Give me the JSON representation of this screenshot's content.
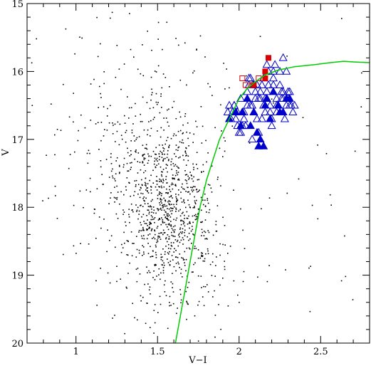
{
  "chart_data": {
    "type": "scatter",
    "title": "",
    "xlabel": "V−I",
    "ylabel": "V",
    "xlim": [
      0.7,
      2.8
    ],
    "ylim": [
      20,
      15
    ],
    "y_inverted": true,
    "x_ticks": [
      1,
      1.5,
      2,
      2.5
    ],
    "x_tick_labels": [
      "1",
      "1.5",
      "2",
      "2.5"
    ],
    "y_ticks": [
      15,
      16,
      17,
      18,
      19,
      20
    ],
    "y_tick_labels": [
      "15",
      "16",
      "17",
      "18",
      "19",
      "20"
    ],
    "grid": false,
    "legend": "none",
    "series": [
      {
        "marker": "dot",
        "color": "#000000",
        "kind": "field-stars",
        "clumps": [
          {
            "center": [
              1.55,
              17.9
            ],
            "spread": [
              0.15,
              0.55
            ],
            "count": 700
          },
          {
            "center": [
              1.6,
              18.9
            ],
            "spread": [
              0.18,
              0.5
            ],
            "count": 180
          },
          {
            "center": [
              1.4,
              16.9
            ],
            "spread": [
              0.3,
              0.8
            ],
            "count": 260
          },
          {
            "center": [
              1.75,
              17.5
            ],
            "spread": [
              0.6,
              1.4
            ],
            "count": 120
          }
        ]
      },
      {
        "marker": "open-triangle",
        "color": "#0000cc",
        "x": [
          1.93,
          1.95,
          1.97,
          1.99,
          2.01,
          2.03,
          2.05,
          2.07,
          2.09,
          2.11,
          2.13,
          2.15,
          2.17,
          2.19,
          2.21,
          2.23,
          2.25,
          2.27,
          2.29,
          2.31,
          2.33,
          1.94,
          1.98,
          2.02,
          2.06,
          2.1,
          2.14,
          2.18,
          2.22,
          2.26,
          2.3,
          2.34,
          2.0,
          2.04,
          2.08,
          2.12,
          2.16,
          2.2,
          2.24,
          2.28,
          2.32,
          2.09,
          2.13,
          2.17,
          2.21,
          2.25,
          2.07,
          2.11,
          2.15,
          2.19,
          2.23,
          2.27,
          2.03,
          1.99,
          2.05,
          2.01,
          2.17,
          2.21,
          2.29,
          2.23,
          2.27,
          2.31,
          1.96,
          2.08,
          2.14,
          2.24,
          2.12,
          2.18,
          2.26,
          2.3,
          1.97,
          2.02,
          2.06,
          2.1,
          2.16,
          2.2
        ],
        "y": [
          16.6,
          16.7,
          16.5,
          16.8,
          16.4,
          16.6,
          16.3,
          16.5,
          16.2,
          16.7,
          16.4,
          16.1,
          16.3,
          16.5,
          16.2,
          16.6,
          16.0,
          16.4,
          16.5,
          16.3,
          16.6,
          16.5,
          16.7,
          16.6,
          16.2,
          16.4,
          16.2,
          16.0,
          15.9,
          16.3,
          16.4,
          16.5,
          16.9,
          16.8,
          17.0,
          16.9,
          16.6,
          16.8,
          16.5,
          16.7,
          16.5,
          16.6,
          16.3,
          16.4,
          16.1,
          16.2,
          16.1,
          16.2,
          16.5,
          16.6,
          16.5,
          16.3,
          16.7,
          16.6,
          16.5,
          16.9,
          15.9,
          16.0,
          16.0,
          16.4,
          15.8,
          16.5,
          16.6,
          16.5,
          16.7,
          16.5,
          16.4,
          16.2,
          16.4,
          16.3,
          16.5,
          16.8,
          16.1,
          16.3,
          16.4,
          16.7
        ]
      },
      {
        "marker": "filled-triangle",
        "color": "#0000cc",
        "x": [
          1.94,
          1.98,
          2.01,
          2.05,
          2.09,
          2.12,
          2.15,
          2.19,
          2.24,
          2.27,
          2.11,
          2.13,
          2.16,
          2.21,
          2.25,
          2.29,
          2.07,
          2.02,
          2.17,
          2.31
        ],
        "y": [
          16.7,
          16.6,
          16.8,
          16.4,
          16.6,
          17.1,
          17.1,
          16.7,
          16.5,
          16.6,
          16.9,
          17.0,
          16.5,
          16.3,
          16.6,
          16.4,
          16.8,
          16.6,
          16.4,
          16.4
        ]
      },
      {
        "marker": "filled-square",
        "color": "#dd0000",
        "x": [
          2.18,
          2.16,
          2.16,
          2.09
        ],
        "y": [
          15.8,
          16.0,
          16.1,
          16.2
        ]
      },
      {
        "marker": "open-square",
        "color": "#dd0000",
        "x": [
          2.02,
          2.04,
          2.08,
          2.12
        ],
        "y": [
          16.1,
          16.2,
          16.2,
          16.1
        ]
      },
      {
        "marker": "line",
        "color": "#00cc00",
        "x": [
          1.61,
          1.64,
          1.67,
          1.7,
          1.73,
          1.76,
          1.8,
          1.84,
          1.88,
          1.92,
          1.96,
          2.0,
          2.05,
          2.1,
          2.16,
          2.24,
          2.34,
          2.46,
          2.56,
          2.64,
          2.7,
          2.8
        ],
        "y": [
          20.0,
          19.6,
          19.2,
          18.8,
          18.4,
          18.0,
          17.6,
          17.3,
          17.0,
          16.8,
          16.6,
          16.4,
          16.25,
          16.15,
          16.05,
          15.98,
          15.93,
          15.9,
          15.87,
          15.85,
          15.86,
          15.87
        ]
      }
    ]
  }
}
